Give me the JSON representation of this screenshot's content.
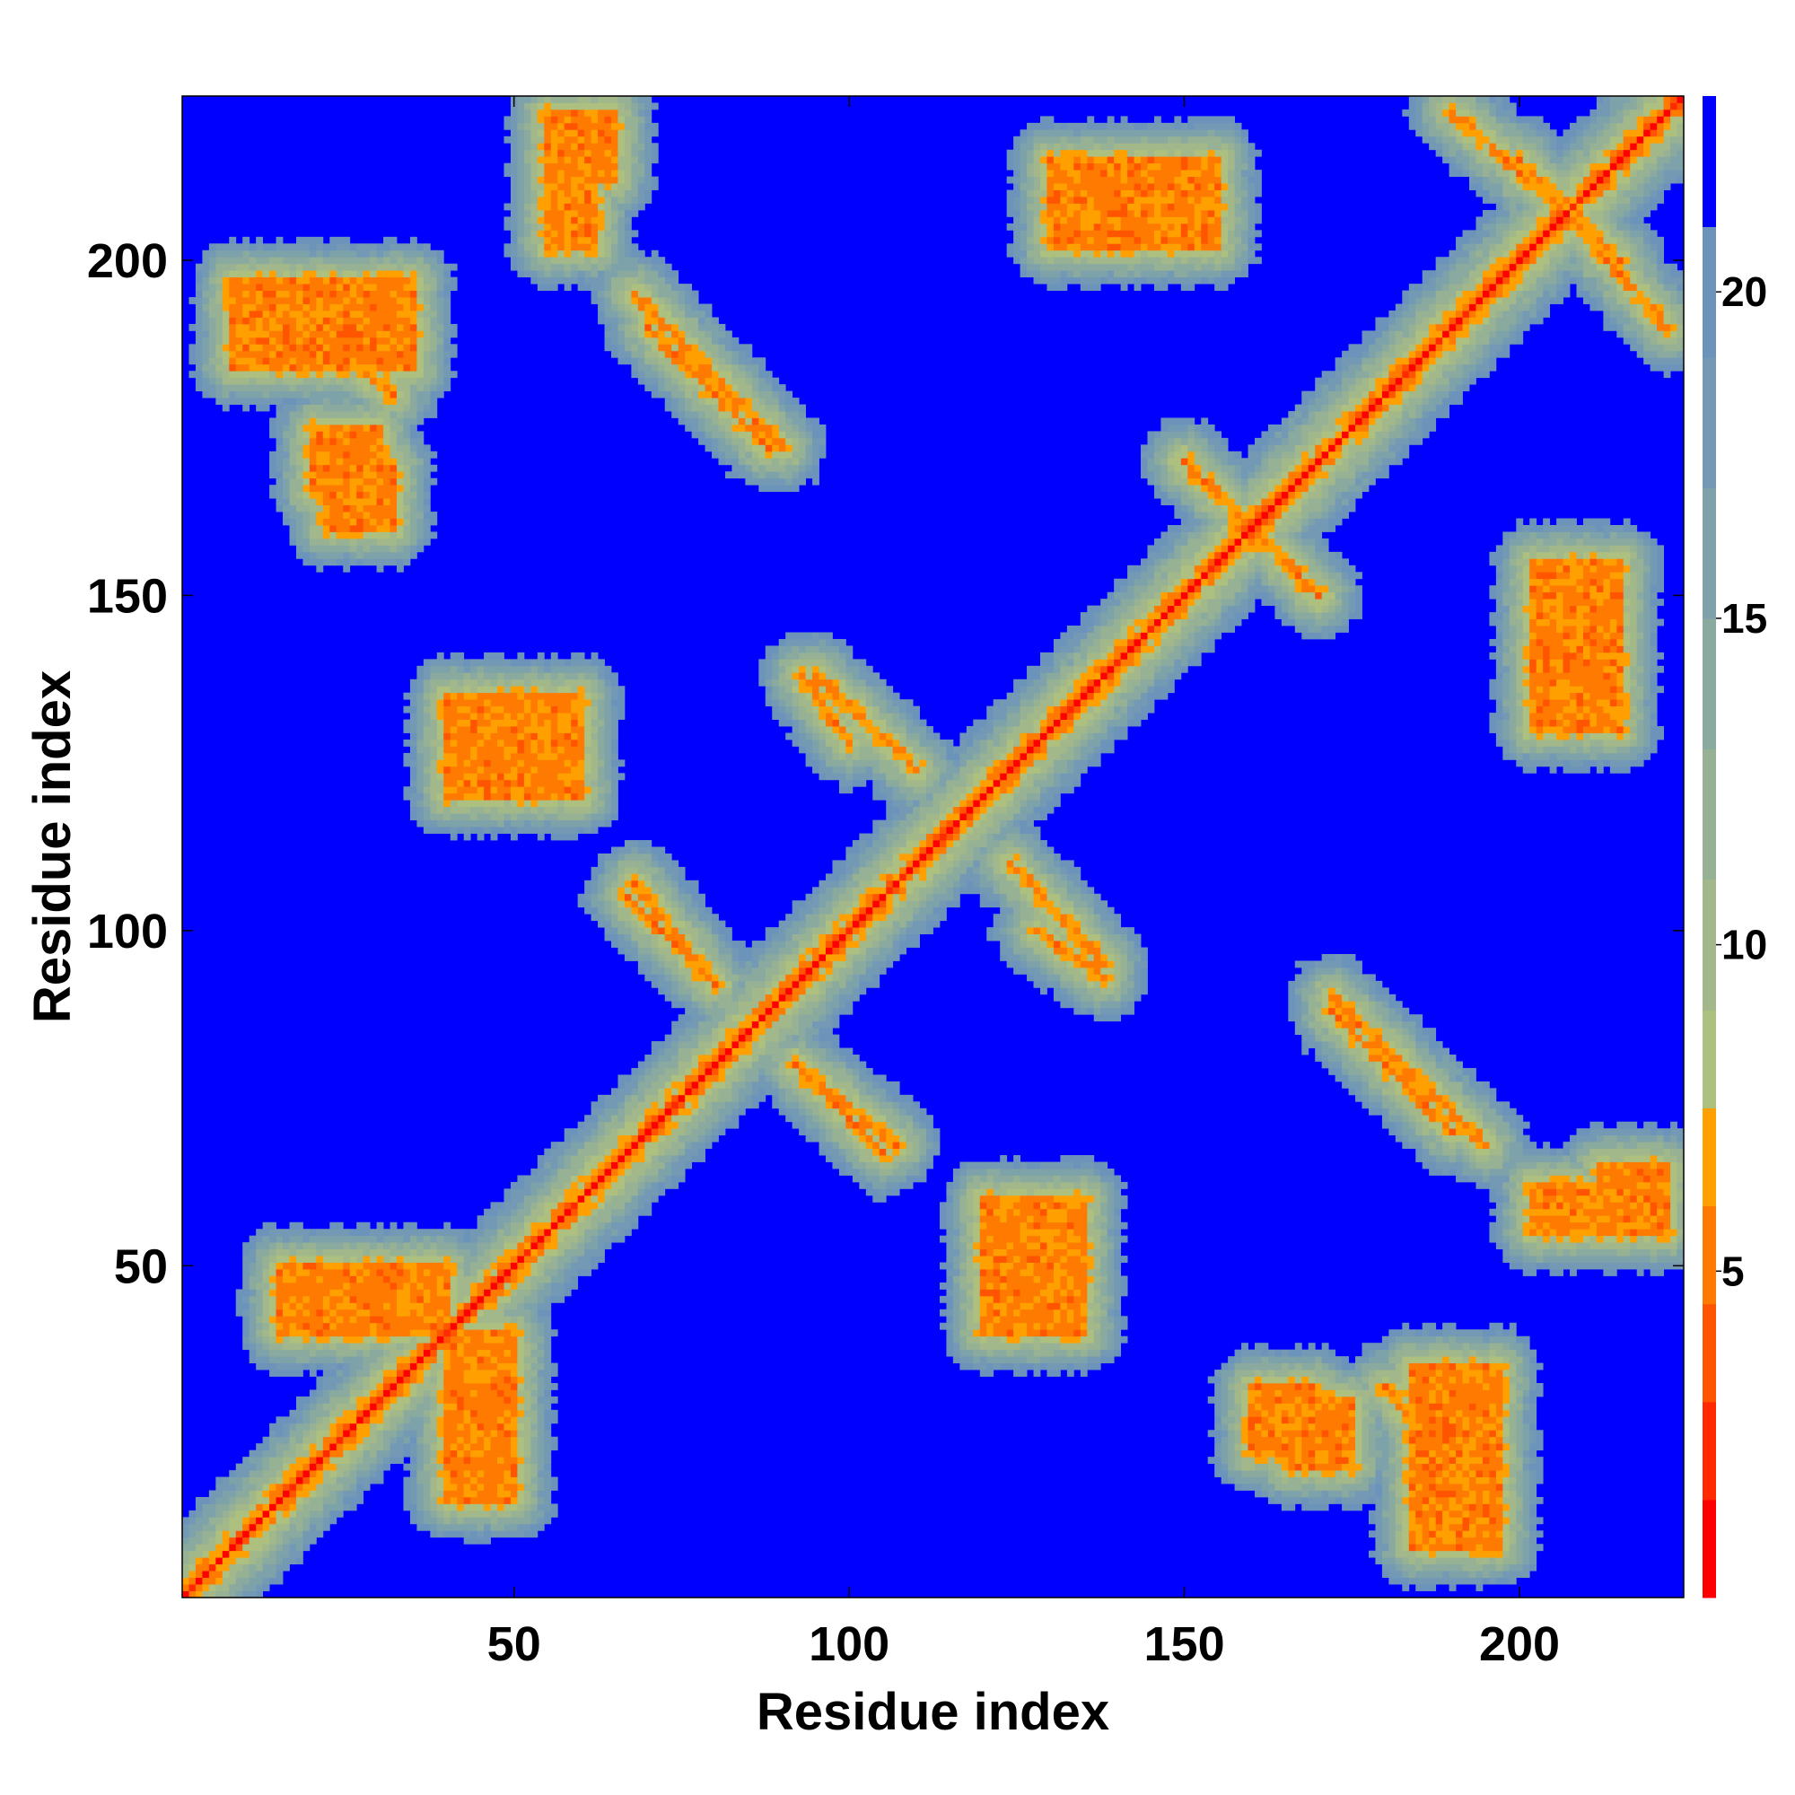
{
  "chart_data": {
    "type": "heatmap",
    "title": "",
    "xlabel": "Residue index",
    "ylabel": "Residue index",
    "n_residues": 224,
    "xlim": [
      1,
      224
    ],
    "ylim": [
      1,
      224
    ],
    "x_ticks": [
      50,
      100,
      150,
      200
    ],
    "y_ticks": [
      50,
      100,
      150,
      200
    ],
    "colorbar": {
      "ticks": [
        5,
        10,
        15,
        20
      ],
      "range": [
        0,
        23
      ],
      "levels": [
        {
          "max": 1.5,
          "color": "#ff0000"
        },
        {
          "max": 3.0,
          "color": "#ff2a00"
        },
        {
          "max": 4.5,
          "color": "#ff5500"
        },
        {
          "max": 6.0,
          "color": "#ff7a00"
        },
        {
          "max": 7.5,
          "color": "#ffa000"
        },
        {
          "max": 9.0,
          "color": "#adc07f"
        },
        {
          "max": 11.0,
          "color": "#a2b88a"
        },
        {
          "max": 13.0,
          "color": "#96b194"
        },
        {
          "max": 15.0,
          "color": "#8aaaa0"
        },
        {
          "max": 17.0,
          "color": "#7ea2aa"
        },
        {
          "max": 19.0,
          "color": "#7399b4"
        },
        {
          "max": 21.0,
          "color": "#6c94bb"
        },
        {
          "max": 23.0,
          "color": "#0000ff"
        }
      ]
    },
    "contact_features": [
      {
        "type": "diagonal",
        "from": 1,
        "to": 224
      },
      {
        "type": "antiparallel_band",
        "x": [
          70,
          88
        ],
        "y": [
          190,
          172
        ]
      },
      {
        "type": "antiparallel_band",
        "x": [
          95,
          110
        ],
        "y": [
          138,
          124
        ]
      },
      {
        "type": "antiparallel_band",
        "x": [
          150,
          160
        ],
        "y": [
          170,
          160
        ]
      },
      {
        "type": "antiparallel_band",
        "x": [
          190,
          215
        ],
        "y": [
          222,
          200
        ]
      },
      {
        "type": "parallel_band",
        "x": [
          67,
          80
        ],
        "y": [
          105,
          92
        ]
      },
      {
        "type": "parallel_band",
        "x": [
          92,
          107
        ],
        "y": [
          80,
          68
        ]
      },
      {
        "type": "parallel_band",
        "x": [
          128,
          138
        ],
        "y": [
          100,
          93
        ]
      },
      {
        "type": "parallel_band",
        "x": [
          172,
          195
        ],
        "y": [
          90,
          68
        ]
      },
      {
        "type": "parallel_band",
        "x": [
          180,
          195
        ],
        "y": [
          32,
          14
        ]
      },
      {
        "type": "cluster",
        "x": [
          8,
          35
        ],
        "y": [
          184,
          197
        ]
      },
      {
        "type": "cluster",
        "x": [
          22,
          32
        ],
        "y": [
          160,
          170
        ]
      },
      {
        "type": "cluster",
        "x": [
          40,
          60
        ],
        "y": [
          120,
          135
        ]
      },
      {
        "type": "cluster",
        "x": [
          55,
          65
        ],
        "y": [
          212,
          222
        ]
      },
      {
        "type": "cluster",
        "x": [
          120,
          135
        ],
        "y": [
          45,
          58
        ]
      },
      {
        "type": "cluster",
        "x": [
          165,
          175
        ],
        "y": [
          20,
          30
        ]
      },
      {
        "type": "cluster",
        "x": [
          202,
          220
        ],
        "y": [
          55,
          62
        ]
      },
      {
        "type": "cluster",
        "x": [
          202,
          215
        ],
        "y": [
          130,
          155
        ]
      },
      {
        "type": "cluster",
        "x": [
          15,
          40
        ],
        "y": [
          40,
          50
        ]
      }
    ]
  }
}
